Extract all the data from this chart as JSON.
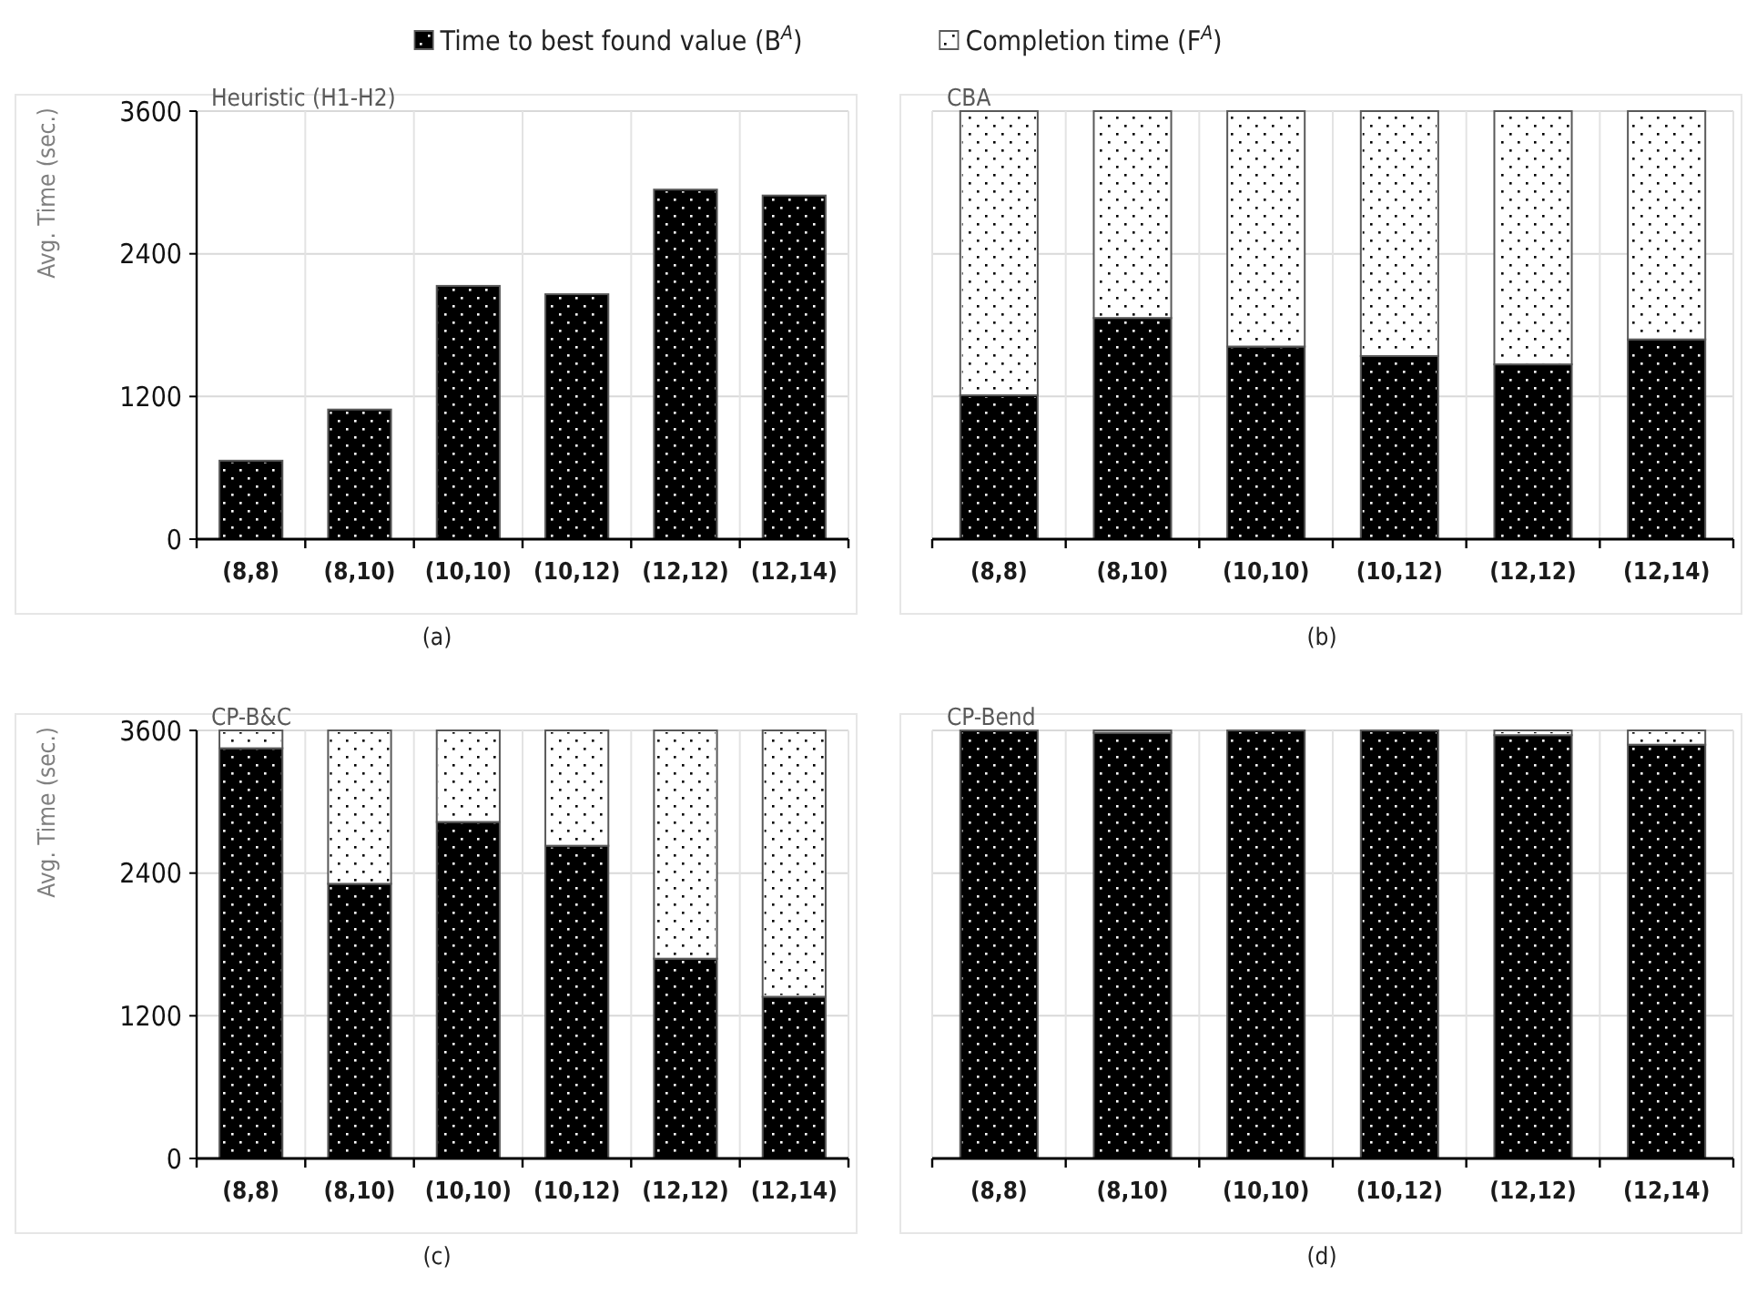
{
  "chart_data": [
    {
      "type": "bar",
      "title": "Heuristic (H1-H2)",
      "xlabel": "(a)",
      "ylabel": "Avg. Time (sec.)",
      "categories": [
        "(8,8)",
        "(8,10)",
        "(10,10)",
        "(10,12)",
        "(12,12)",
        "(12,14)"
      ],
      "series": [
        {
          "color": "#000000",
          "values": [
            660,
            1090,
            2130,
            2060,
            2940,
            2890
          ]
        }
      ],
      "ylim": [
        0,
        3600
      ],
      "yticks": [
        0,
        1200,
        2400,
        3600
      ],
      "grid": true
    },
    {
      "type": "bar",
      "title": "CBA",
      "xlabel": "(b)",
      "categories": [
        "(8,8)",
        "(8,10)",
        "(10,10)",
        "(10,12)",
        "(12,12)",
        "(12,14)"
      ],
      "stacked": true,
      "series": [
        {
          "name": "Time to best found value (B$^{A}$)",
          "color": "#000000",
          "values": [
            1210,
            1860,
            1620,
            1540,
            1470,
            1680
          ]
        },
        {
          "name": "Completion time (F$^{A}$)",
          "color": "#ffffff",
          "values": [
            2390,
            1740,
            1980,
            2060,
            2130,
            1920
          ]
        }
      ],
      "ylim": [
        0,
        3600
      ],
      "yticks": [
        0,
        1200,
        2400,
        3600
      ],
      "grid": true,
      "tick_labels": "x",
      "legend": "top"
    },
    {
      "type": "bar",
      "title": "CP-B&C",
      "xlabel": "(c)",
      "ylabel": "Avg. Time (sec.)",
      "categories": [
        "(8,8)",
        "(8,10)",
        "(10,10)",
        "(10,12)",
        "(12,12)",
        "(12,14)"
      ],
      "stacked": true,
      "series": [
        {
          "color": "#000000",
          "values": [
            3450,
            2310,
            2830,
            2630,
            1680,
            1360
          ]
        },
        {
          "color": "#ffffff",
          "values": [
            150,
            1290,
            770,
            970,
            1920,
            2240
          ]
        }
      ],
      "ylim": [
        0,
        3600
      ],
      "yticks": [
        0,
        1200,
        2400,
        3600
      ],
      "grid": true
    },
    {
      "type": "bar",
      "title": "CP-Bend",
      "xlabel": "(d)",
      "categories": [
        "(8,8)",
        "(8,10)",
        "(10,10)",
        "(10,12)",
        "(12,12)",
        "(12,14)"
      ],
      "stacked": true,
      "series": [
        {
          "color": "#000000",
          "values": [
            3600,
            3580,
            3600,
            3600,
            3560,
            3480
          ]
        },
        {
          "color": "#ffffff",
          "values": [
            0,
            20,
            0,
            0,
            40,
            120
          ]
        }
      ],
      "ylim": [
        0,
        3600
      ],
      "yticks": [
        0,
        1200,
        2400,
        3600
      ],
      "grid": true,
      "tick_labels": "x"
    }
  ]
}
